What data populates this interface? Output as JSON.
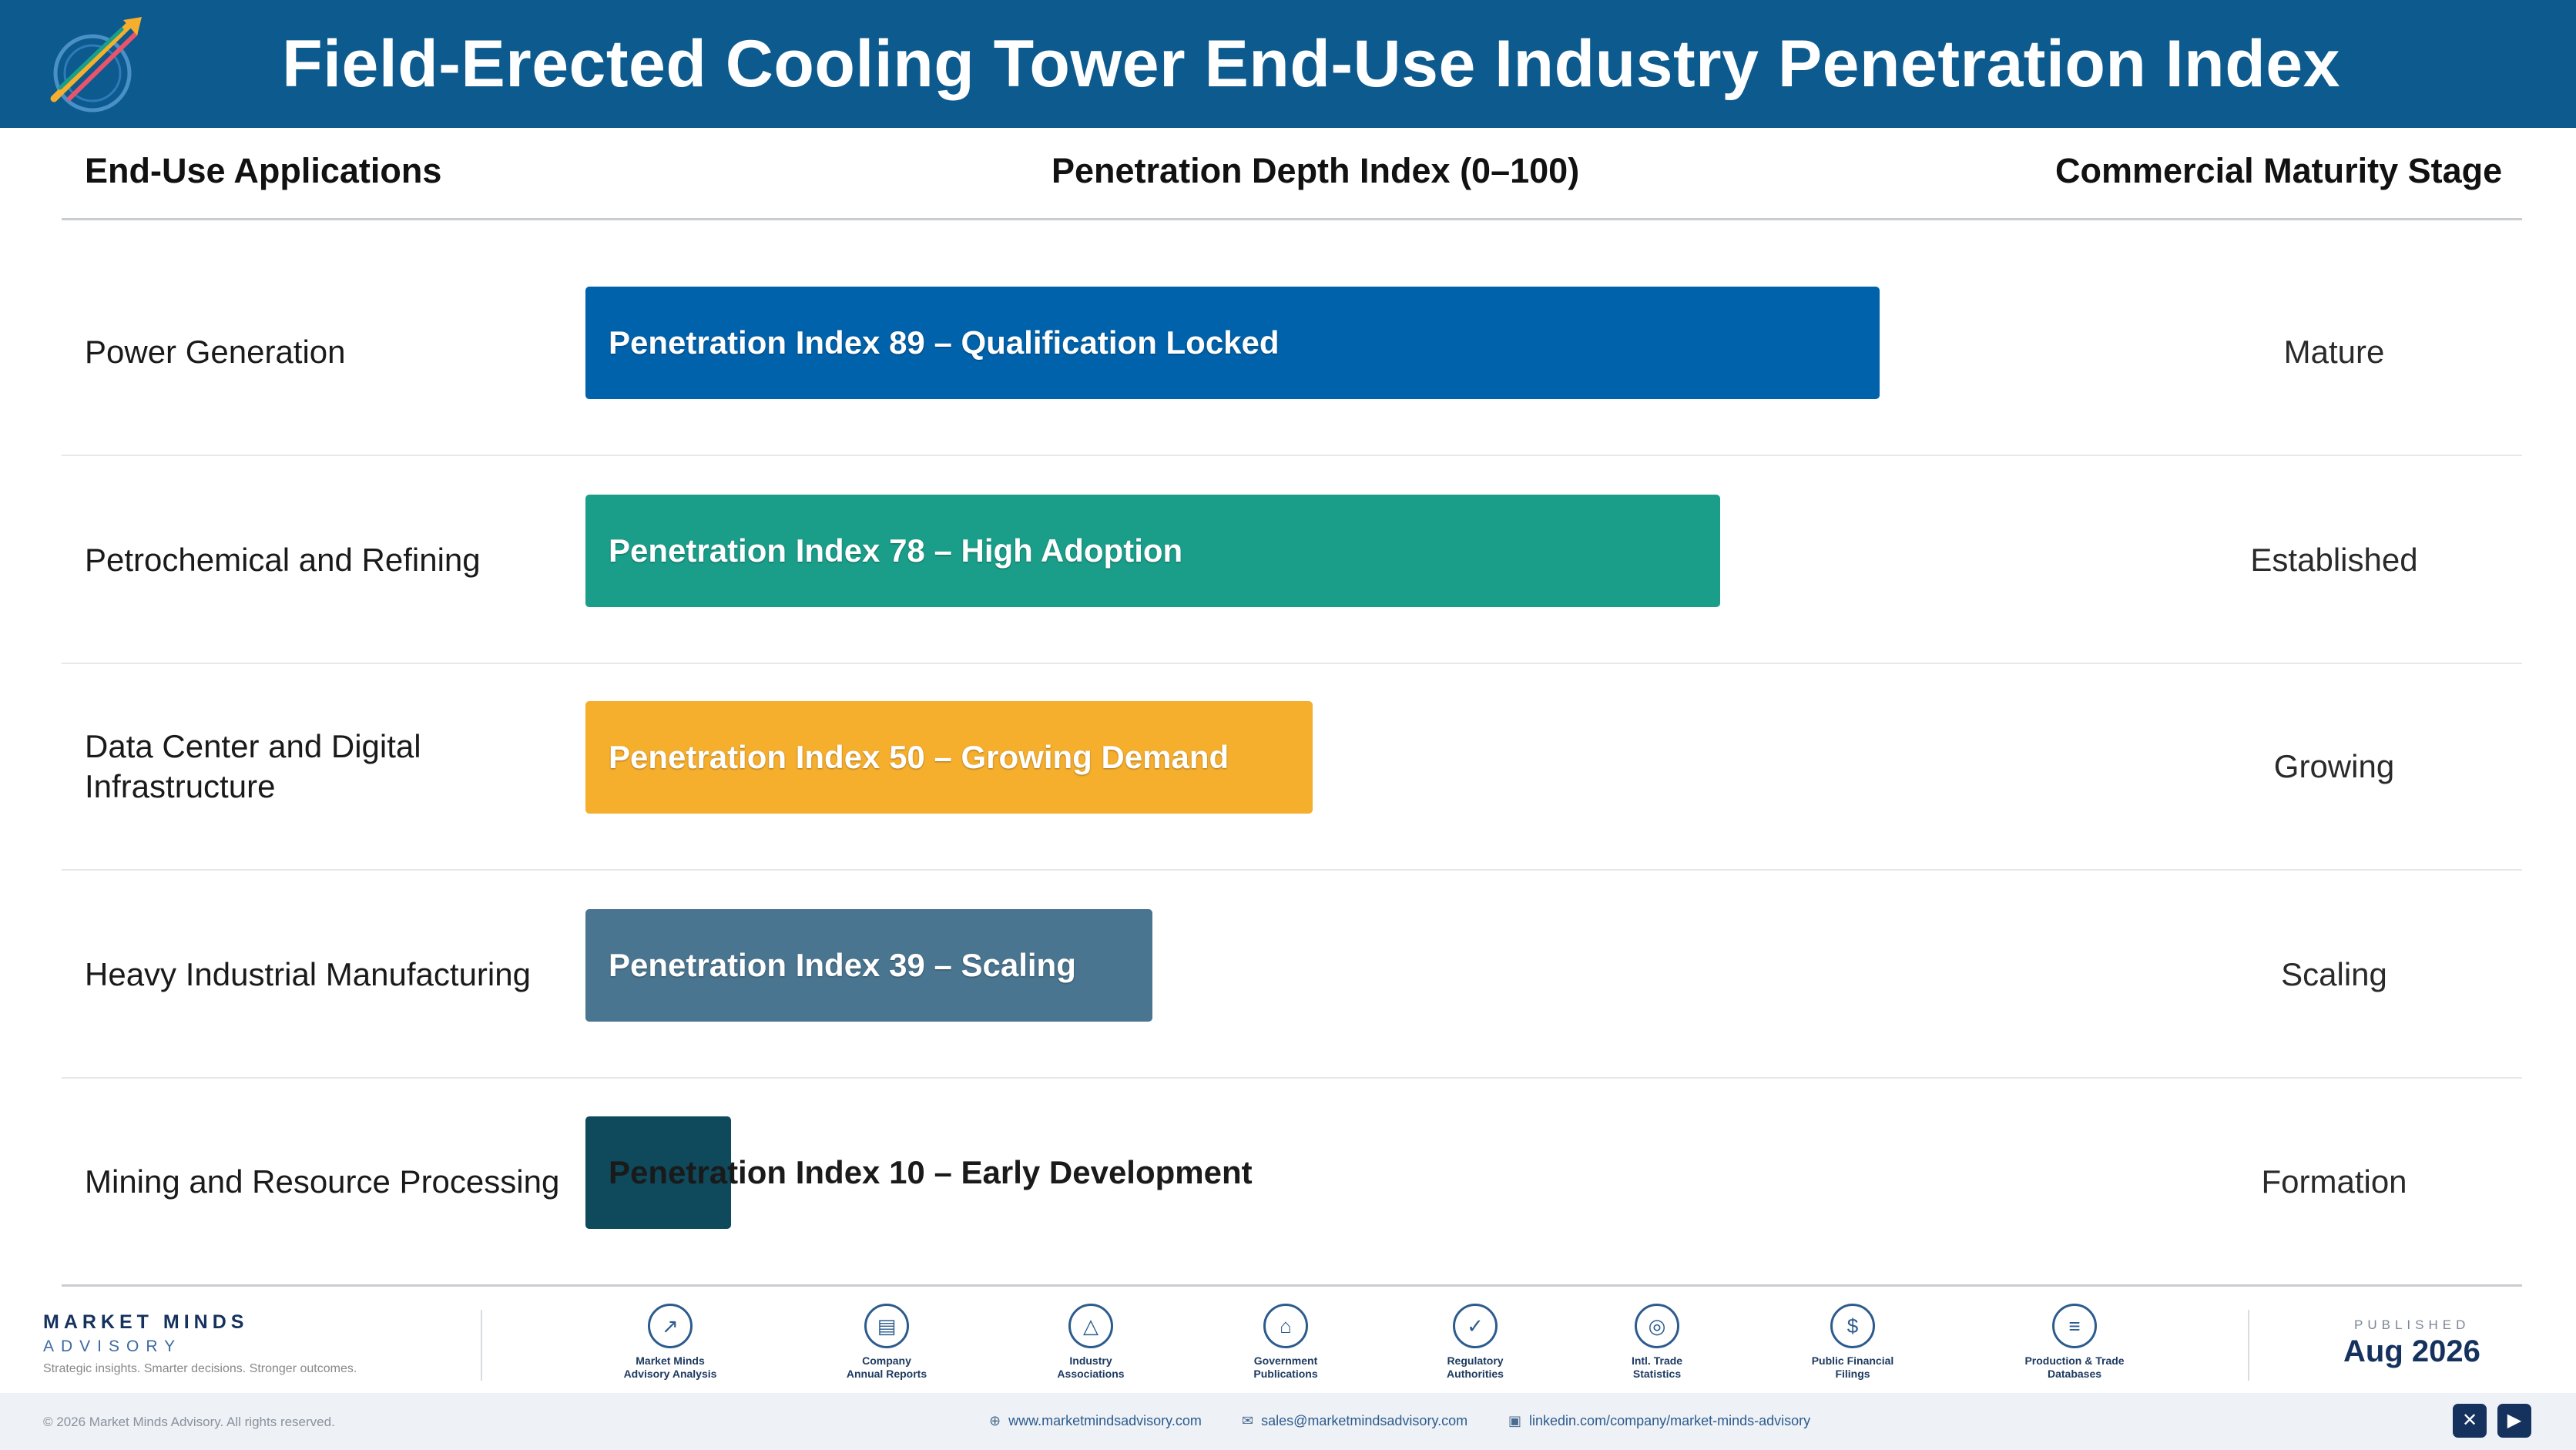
{
  "header": {
    "title": "Field-Erected Cooling Tower End-Use Industry Penetration Index"
  },
  "columns": {
    "applications": "End-Use Applications",
    "depth": "Penetration Depth Index (0–100)",
    "stage": "Commercial Maturity Stage"
  },
  "chart_data": {
    "type": "bar",
    "orientation": "horizontal",
    "xlim": [
      0,
      100
    ],
    "categories": [
      "Power Generation",
      "Petrochemical and Refining",
      "Data Center and Digital Infrastructure",
      "Heavy Industrial Manufacturing",
      "Mining and Resource Processing"
    ],
    "values": [
      89,
      78,
      50,
      39,
      10
    ],
    "bar_labels": [
      "Penetration Index 89 – Qualification Locked",
      "Penetration Index 78 – High Adoption",
      "Penetration Index 50 – Growing Demand",
      "Penetration Index 39 – Scaling",
      "Penetration Index 10 – Early Development"
    ],
    "stages": [
      "Mature",
      "Established",
      "Growing",
      "Scaling",
      "Formation"
    ],
    "colors": [
      "#0062ab",
      "#1a9e8a",
      "#f6ae2d",
      "#4a7590",
      "#0e4a5c"
    ]
  },
  "footer": {
    "brand_name": "MARKET MINDS",
    "brand_sub": "ADVISORY",
    "tagline": "Strategic insights. Smarter decisions. Stronger outcomes.",
    "sources": [
      {
        "icon": "trend-icon",
        "glyph": "↗",
        "line1": "Market Minds",
        "line2": "Advisory Analysis"
      },
      {
        "icon": "report-icon",
        "glyph": "▤",
        "line1": "Company",
        "line2": "Annual Reports"
      },
      {
        "icon": "network-icon",
        "glyph": "△",
        "line1": "Industry",
        "line2": "Associations"
      },
      {
        "icon": "government-icon",
        "glyph": "⌂",
        "line1": "Government",
        "line2": "Publications"
      },
      {
        "icon": "shield-icon",
        "glyph": "✓",
        "line1": "Regulatory",
        "line2": "Authorities"
      },
      {
        "icon": "globe-icon",
        "glyph": "◎",
        "line1": "Intl. Trade",
        "line2": "Statistics"
      },
      {
        "icon": "coin-icon",
        "glyph": "$",
        "line1": "Public Financial",
        "line2": "Filings"
      },
      {
        "icon": "database-icon",
        "glyph": "≡",
        "line1": "Production & Trade",
        "line2": "Databases"
      }
    ],
    "published_label": "PUBLISHED",
    "published_date": "Aug 2026",
    "copyright": "© 2026 Market Minds Advisory. All rights reserved.",
    "website": "www.marketmindsadvisory.com",
    "email": "sales@marketmindsadvisory.com",
    "linkedin": "linkedin.com/company/market-minds-advisory",
    "social": [
      {
        "icon": "x-icon",
        "glyph": "✕"
      },
      {
        "icon": "youtube-icon",
        "glyph": "▶"
      }
    ]
  }
}
